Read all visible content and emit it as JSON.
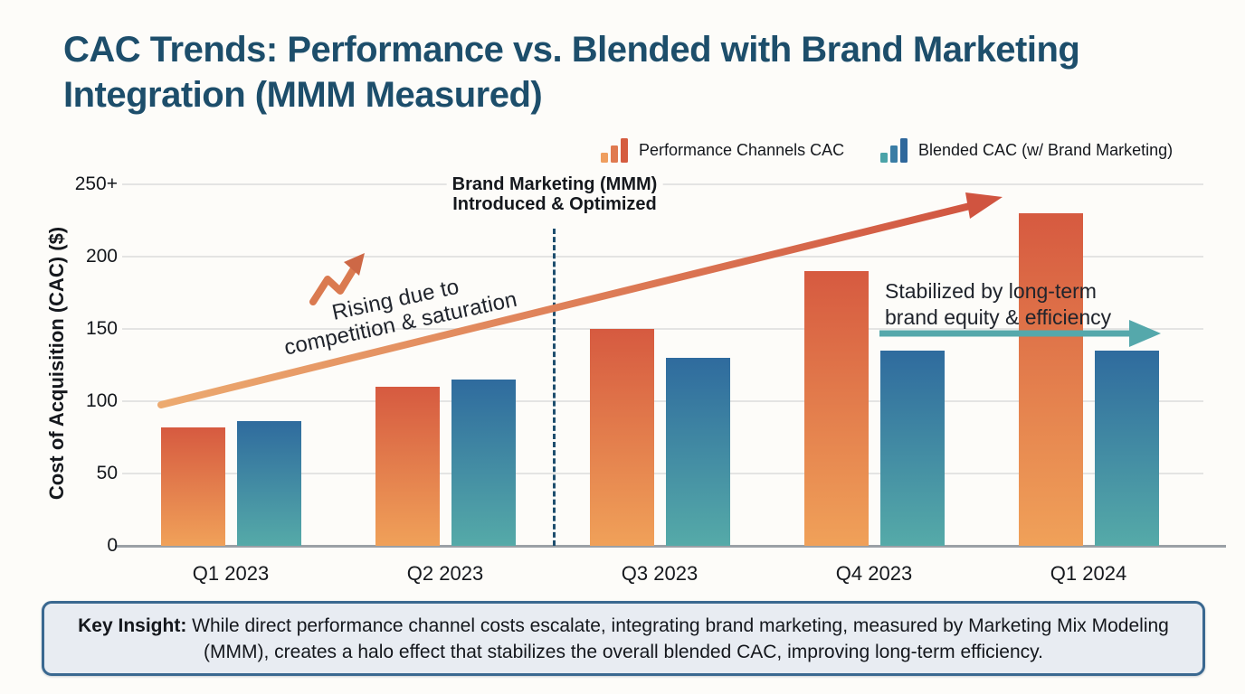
{
  "title": {
    "line1_bold": "CAC Trends: ",
    "line1_mid": "Performance vs. Blended with ",
    "line1_bold2": "Brand Marketing",
    "line2_bold": "Integration (MMM Measured)"
  },
  "legend": [
    {
      "label": "Performance Channels CAC",
      "icon": "mini-bars-orange",
      "icon_colors": [
        "#ef9e5f",
        "#e07a50",
        "#d55c3f"
      ]
    },
    {
      "label": "Blended CAC (w/ Brand Marketing)",
      "icon": "mini-bars-blue",
      "icon_colors": [
        "#4ba3a8",
        "#3a7da5",
        "#2e679b"
      ]
    }
  ],
  "chart_data": {
    "type": "bar",
    "title": "CAC Trends: Performance vs. Blended with Brand Marketing Integration (MMM Measured)",
    "categories": [
      "Q1 2023",
      "Q2 2023",
      "Q3 2023",
      "Q4 2023",
      "Q1 2024"
    ],
    "series": [
      {
        "name": "Performance Channels CAC",
        "values": [
          82,
          110,
          150,
          190,
          230
        ],
        "gradient_top": "#d65a40",
        "gradient_bottom": "#f0a159"
      },
      {
        "name": "Blended CAC (w/ Brand Marketing)",
        "values": [
          86,
          115,
          130,
          135,
          135
        ],
        "gradient_top": "#2f6b9e",
        "gradient_bottom": "#55aaa8"
      }
    ],
    "xlabel": "",
    "ylabel": "Cost of Acquisition (CAC) ($)",
    "ylim": [
      0,
      250
    ],
    "ytick_values": [
      0,
      50,
      100,
      150,
      200,
      250
    ],
    "ytick_labels": [
      "0",
      "50",
      "100",
      "150",
      "200",
      "250+"
    ],
    "grid": true,
    "legend_position": "top-right"
  },
  "annotations": {
    "mmm_note": {
      "line1": "Brand Marketing (MMM)",
      "line2": "Introduced & Optimized"
    },
    "rising_note": {
      "line1": "Rising due to",
      "line2": "competition & saturation"
    },
    "stabilized_note": {
      "line1": "Stabilized by long-term",
      "line2": "brand equity & efficiency"
    }
  },
  "insight": {
    "label": "Key Insight:",
    "text": " While direct performance channel costs escalate, integrating brand marketing, measured by Marketing Mix Modeling (MMM), creates a halo effect that stabilizes the overall blended CAC, improving long-term efficiency."
  },
  "colors": {
    "title_text": "#1d4e6b",
    "page_background": "#fdfcf9",
    "gridline": "#e4e4e3",
    "axis_line": "#9ba0a6",
    "dashed_line": "#1e4e6e",
    "rising_arrow_start": "#ecaa70",
    "rising_arrow_end": "#d05440",
    "stabilized_arrow": "#55a8ab",
    "insight_box_fill": "#e8ecf2",
    "insight_box_border": "#3a6890"
  }
}
